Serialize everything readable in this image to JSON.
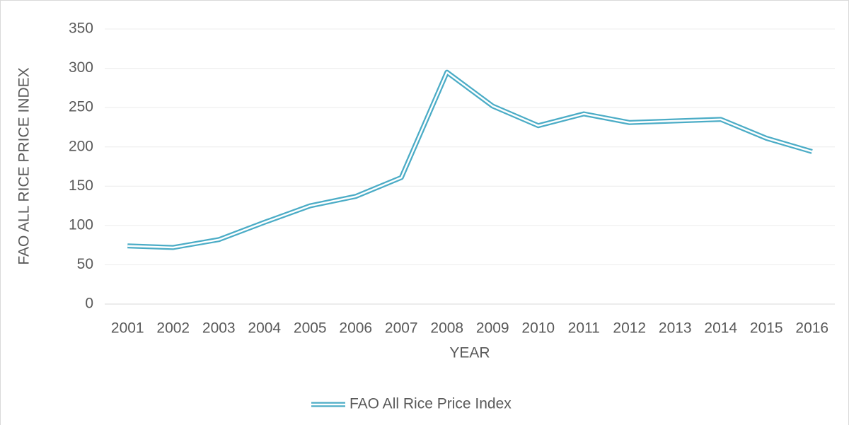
{
  "chart_data": {
    "type": "line",
    "x_label": "YEAR",
    "y_label": "FAO ALL RICE PRICE INDEX",
    "categories": [
      "2001",
      "2002",
      "2003",
      "2004",
      "2005",
      "2006",
      "2007",
      "2008",
      "2009",
      "2010",
      "2011",
      "2012",
      "2013",
      "2014",
      "2015",
      "2016"
    ],
    "series": [
      {
        "name": "FAO All Rice Price Index",
        "color": "#4bacc6",
        "values": [
          74,
          72,
          82,
          104,
          125,
          137,
          161,
          295,
          252,
          227,
          242,
          231,
          233,
          235,
          211,
          194
        ]
      }
    ],
    "ylim": [
      0,
      350
    ],
    "yticks": [
      0,
      50,
      100,
      150,
      200,
      250,
      300,
      350
    ],
    "grid": true,
    "legend": "bottom"
  }
}
